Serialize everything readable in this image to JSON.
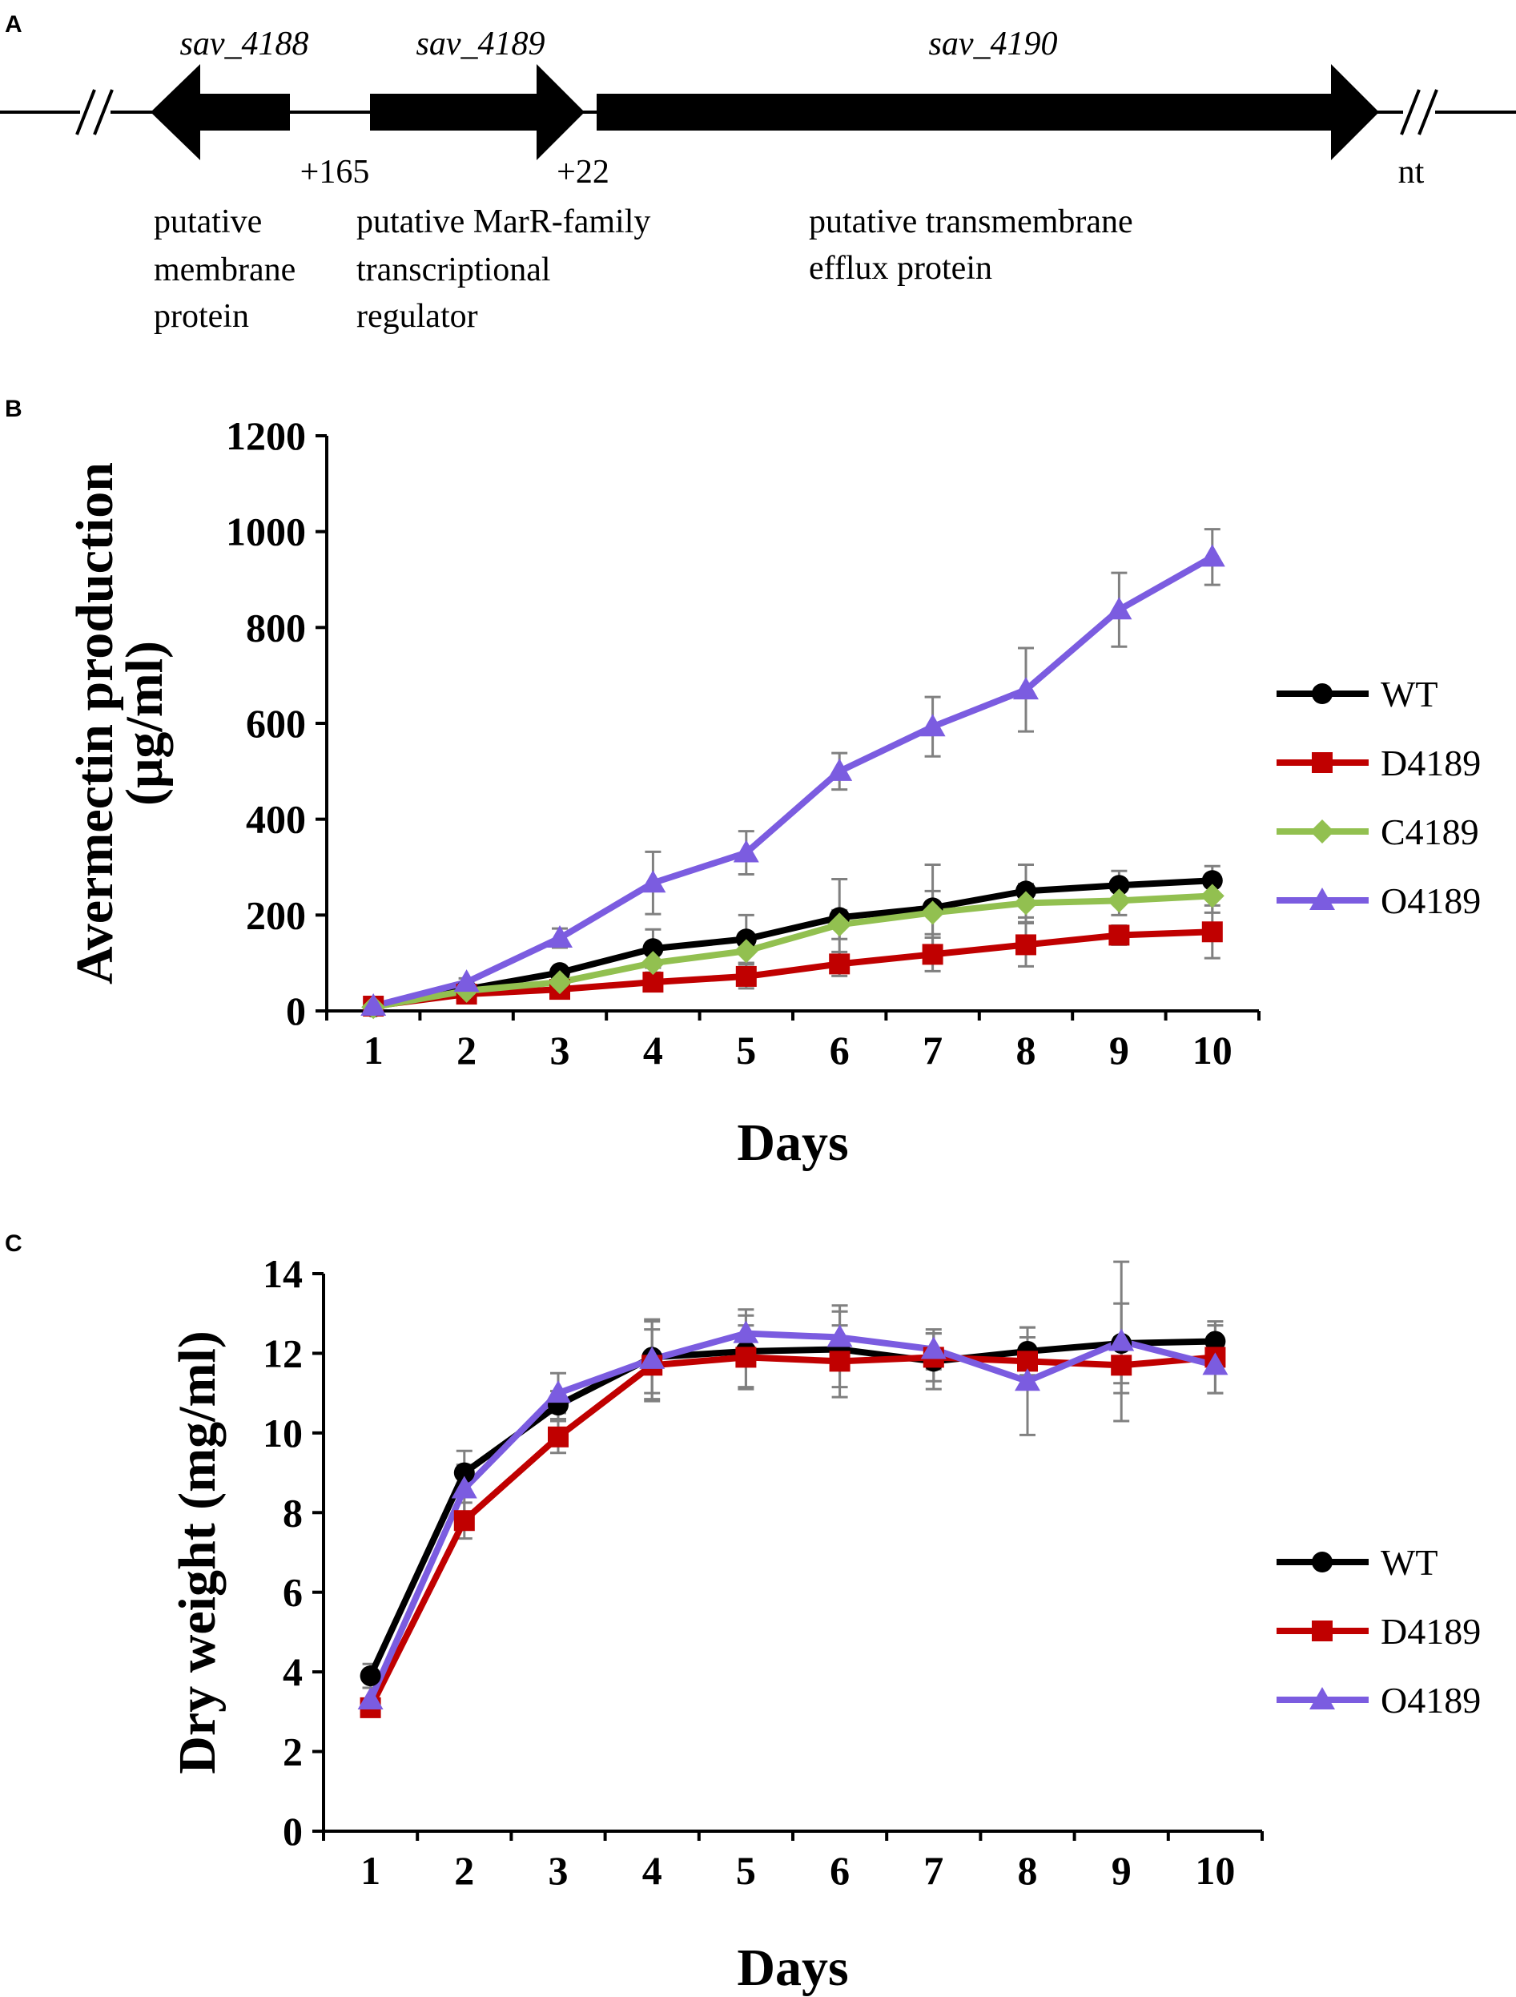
{
  "panel_a": {
    "letter": "A",
    "genes": [
      {
        "name": "sav_4188",
        "direction": "left",
        "description": [
          "putative",
          "membrane",
          "protein"
        ]
      },
      {
        "name": "sav_4189",
        "direction": "right",
        "description": [
          "putative MarR-family",
          "transcriptional",
          "regulator"
        ]
      },
      {
        "name": "sav_4190",
        "direction": "right",
        "description": [
          "putative transmembrane",
          "efflux protein"
        ]
      }
    ],
    "spacers": [
      "+165",
      "+22"
    ],
    "unit": "nt",
    "color": "#000000"
  },
  "chart_data": [
    {
      "panel": "B",
      "type": "line",
      "title": "",
      "xlabel": "Days",
      "ylabel_lines": [
        "Avermectin production",
        "(μg/ml)"
      ],
      "categories": [
        "1",
        "2",
        "3",
        "4",
        "5",
        "6",
        "7",
        "8",
        "9",
        "10"
      ],
      "ylim": [
        0,
        1200
      ],
      "yticks": [
        "0",
        "200",
        "400",
        "600",
        "800",
        "1000",
        "1200"
      ],
      "legend_position": "right",
      "series": [
        {
          "name": "WT",
          "color": "#000000",
          "marker": "circle",
          "values": [
            8,
            45,
            80,
            130,
            150,
            195,
            215,
            250,
            262,
            272
          ],
          "errors": [
            3,
            8,
            12,
            40,
            50,
            80,
            90,
            55,
            30,
            30
          ]
        },
        {
          "name": "D4189",
          "color": "#c00000",
          "marker": "square",
          "values": [
            10,
            35,
            45,
            60,
            72,
            98,
            118,
            138,
            158,
            165
          ],
          "errors": [
            3,
            6,
            10,
            15,
            25,
            25,
            35,
            45,
            20,
            55
          ]
        },
        {
          "name": "C4189",
          "color": "#92c050",
          "marker": "diamond",
          "values": [
            8,
            42,
            60,
            100,
            125,
            180,
            205,
            225,
            230,
            240
          ],
          "errors": [
            3,
            6,
            10,
            20,
            25,
            30,
            45,
            40,
            30,
            35
          ]
        },
        {
          "name": "O4189",
          "color": "#7b5ce0",
          "marker": "triangle",
          "values": [
            10,
            60,
            152,
            267,
            330,
            500,
            593,
            670,
            837,
            947
          ],
          "errors": [
            3,
            8,
            20,
            65,
            45,
            38,
            62,
            87,
            77,
            58
          ]
        }
      ]
    },
    {
      "panel": "C",
      "type": "line",
      "title": "",
      "xlabel": "Days",
      "ylabel_lines": [
        "Dry  weight (mg/ml)"
      ],
      "categories": [
        "1",
        "2",
        "3",
        "4",
        "5",
        "6",
        "7",
        "8",
        "9",
        "10"
      ],
      "ylim": [
        0,
        14
      ],
      "yticks": [
        "0",
        "2",
        "4",
        "6",
        "8",
        "10",
        "12",
        "14"
      ],
      "legend_position": "right",
      "series": [
        {
          "name": "WT",
          "color": "#000000",
          "marker": "circle",
          "values": [
            3.9,
            9.0,
            10.7,
            11.9,
            12.05,
            12.1,
            11.8,
            12.05,
            12.25,
            12.3
          ],
          "errors": [
            0.3,
            0.55,
            0.35,
            0.9,
            0.9,
            0.95,
            0.7,
            0.6,
            1.0,
            0.4
          ]
        },
        {
          "name": "D4189",
          "color": "#c00000",
          "marker": "square",
          "values": [
            3.1,
            7.8,
            9.9,
            11.7,
            11.9,
            11.8,
            11.9,
            11.8,
            11.7,
            11.9
          ],
          "errors": [
            0.2,
            0.45,
            0.4,
            0.9,
            0.8,
            0.9,
            0.6,
            0.6,
            0.7,
            0.9
          ]
        },
        {
          "name": "O4189",
          "color": "#7b5ce0",
          "marker": "triangle",
          "values": [
            3.3,
            8.6,
            11.0,
            11.85,
            12.5,
            12.4,
            12.1,
            11.3,
            12.3,
            11.7
          ],
          "errors": [
            0.3,
            0.6,
            0.5,
            1.0,
            0.6,
            0.8,
            0.5,
            1.35,
            2.0,
            0.7
          ]
        }
      ]
    }
  ]
}
